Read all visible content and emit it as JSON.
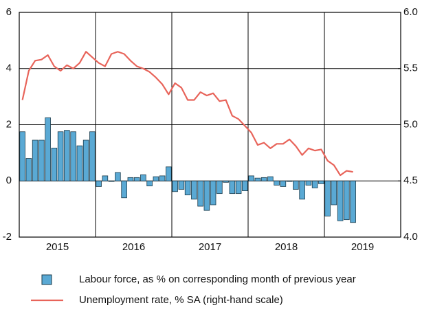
{
  "chart_data": {
    "type": "bar",
    "categories": [
      "2015",
      null,
      null,
      null,
      null,
      null,
      null,
      null,
      null,
      null,
      null,
      null,
      "2016",
      null,
      null,
      null,
      null,
      null,
      null,
      null,
      null,
      null,
      null,
      null,
      "2017",
      null,
      null,
      null,
      null,
      null,
      null,
      null,
      null,
      null,
      null,
      null,
      "2018",
      null,
      null,
      null,
      null,
      null,
      null,
      null,
      null,
      null,
      null,
      null,
      "2019",
      null,
      null,
      null,
      null
    ],
    "series": [
      {
        "name": "Labour force, as % on corresponding month of previous year",
        "type": "bar",
        "color": "#5aa9d4",
        "values": [
          1.75,
          0.8,
          1.45,
          1.45,
          2.25,
          1.17,
          1.75,
          1.8,
          1.75,
          1.25,
          1.45,
          1.75,
          -0.2,
          0.18,
          -0.02,
          0.3,
          -0.6,
          0.12,
          0.12,
          0.22,
          -0.18,
          0.15,
          0.18,
          0.5,
          -0.38,
          -0.3,
          -0.5,
          -0.65,
          -0.9,
          -1.05,
          -0.85,
          -0.45,
          -0.05,
          -0.45,
          -0.45,
          -0.35,
          0.18,
          0.1,
          0.12,
          0.15,
          -0.15,
          -0.2,
          -0.02,
          -0.3,
          -0.65,
          -0.15,
          -0.25,
          -0.1,
          -1.25,
          -0.85,
          -1.42,
          -1.38,
          -1.48
        ]
      },
      {
        "name": "Unemployment rate, % SA (right-hand scale)",
        "type": "line",
        "color": "#e8645a",
        "axis": "y2",
        "values": [
          5.22,
          5.48,
          5.57,
          5.58,
          5.62,
          5.52,
          5.48,
          5.53,
          5.5,
          5.55,
          5.65,
          5.6,
          5.55,
          5.52,
          5.63,
          5.65,
          5.63,
          5.57,
          5.52,
          5.5,
          5.47,
          5.42,
          5.36,
          5.27,
          5.37,
          5.33,
          5.22,
          5.22,
          5.29,
          5.26,
          5.28,
          5.21,
          5.22,
          5.08,
          5.05,
          4.99,
          4.93,
          4.82,
          4.84,
          4.79,
          4.83,
          4.83,
          4.87,
          4.81,
          4.73,
          4.79,
          4.77,
          4.78,
          4.68,
          4.64,
          4.55,
          4.59,
          4.58
        ]
      }
    ],
    "ylim": [
      -2,
      6
    ],
    "yticks": [
      6,
      4,
      2,
      0,
      -2
    ],
    "y2lim": [
      4,
      6
    ],
    "y2ticks": [
      {
        "value": 6,
        "label": "6.0"
      },
      {
        "value": 5.5,
        "label": "5.5"
      },
      {
        "value": 5,
        "label": "5.0"
      },
      {
        "value": 4.5,
        "label": "4.5"
      },
      {
        "value": 4,
        "label": "4.0"
      }
    ],
    "grid": true
  }
}
